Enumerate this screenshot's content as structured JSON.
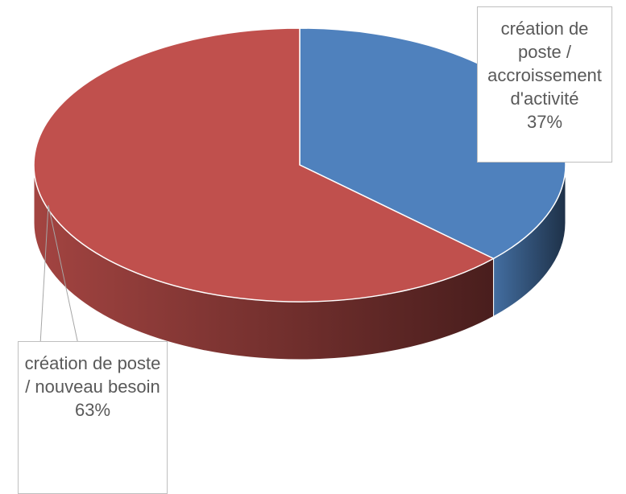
{
  "chart_data": {
    "type": "pie",
    "categories": [
      "création de poste / accroissement d'activité",
      "création de poste / nouveau besoin"
    ],
    "values": [
      37,
      63
    ],
    "value_labels": [
      "37%",
      "63%"
    ],
    "colors": [
      "#4f81bd",
      "#c0504d"
    ]
  }
}
